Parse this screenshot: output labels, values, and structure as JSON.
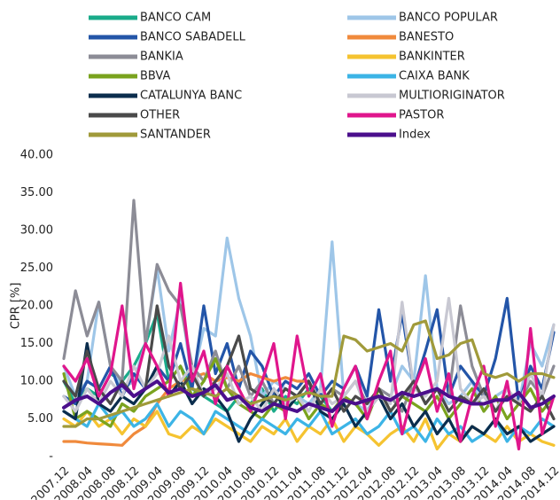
{
  "chart_data": {
    "type": "line",
    "y_label": "CPR [%]",
    "categories": [
      "2007.12",
      null,
      "2008.04",
      null,
      "2008.08",
      null,
      "2008.12",
      null,
      "2009.04",
      null,
      "2009.08",
      null,
      "2009.12",
      null,
      "2010.04",
      null,
      "2010.08",
      null,
      "2010.12",
      null,
      "2011.04",
      null,
      "2011.08",
      null,
      "2011.12",
      null,
      "2012.04",
      null,
      "2012.08",
      null,
      "2012.12",
      null,
      "2013.04",
      null,
      "2013.08",
      null,
      "2013.12",
      null,
      "2014.04",
      null,
      "2014.08",
      null,
      "2014.12"
    ],
    "ylim": [
      0,
      40
    ],
    "yticks": [
      {
        "value": 0,
        "label": "-"
      },
      {
        "value": 5,
        "label": "5.00"
      },
      {
        "value": 10,
        "label": "10.00"
      },
      {
        "value": 15,
        "label": "15.00"
      },
      {
        "value": 20,
        "label": "20.00"
      },
      {
        "value": 25,
        "label": "25.00"
      },
      {
        "value": 30,
        "label": "30.00"
      },
      {
        "value": 35,
        "label": "35.00"
      },
      {
        "value": 40,
        "label": "40.00"
      }
    ],
    "grid": false,
    "legend": "top",
    "series": [
      {
        "name": "BANCO CAM",
        "color": "#1aab8a",
        "values": [
          10,
          7,
          9,
          8,
          11,
          10,
          12,
          15,
          19,
          10,
          12,
          9,
          8,
          7,
          6,
          8,
          7,
          9,
          6,
          8,
          7,
          9,
          8,
          6,
          7,
          null,
          null,
          null,
          null,
          null,
          null,
          null,
          null,
          null,
          null,
          null,
          null,
          null,
          null,
          null,
          null,
          null,
          null
        ]
      },
      {
        "name": "BANCO POPULAR",
        "color": "#9ec6e8",
        "values": [
          12,
          8,
          10,
          20.5,
          12,
          9,
          10,
          15,
          25,
          14,
          21,
          10,
          17,
          16,
          29,
          21,
          16,
          8,
          10,
          9,
          8,
          7,
          9,
          28.5,
          8,
          7,
          6,
          9,
          8,
          12,
          10,
          24,
          9,
          7,
          8,
          10,
          6,
          8,
          9,
          7,
          15,
          12,
          17.5
        ]
      },
      {
        "name": "BANCO SABADELL",
        "color": "#2355a8",
        "values": [
          8,
          7,
          10,
          9,
          12,
          8,
          11,
          9,
          12,
          10,
          15,
          9,
          20,
          11,
          15,
          9,
          14,
          12,
          8,
          10,
          9,
          11,
          8,
          10,
          9,
          12,
          8,
          19.5,
          10,
          19,
          9,
          14,
          19.5,
          8,
          12,
          10,
          8,
          13,
          21,
          7,
          12,
          9,
          16.5
        ]
      },
      {
        "name": "BANESTO",
        "color": "#f08a3c",
        "values": [
          2,
          2,
          1.8,
          1.7,
          1.6,
          1.5,
          3,
          4,
          7,
          9,
          10,
          10.5,
          11,
          10,
          10.5,
          10,
          11,
          10.5,
          10,
          10.5,
          10,
          10,
          null,
          null,
          null,
          null,
          null,
          null,
          null,
          null,
          null,
          null,
          null,
          null,
          null,
          null,
          null,
          null,
          null,
          null,
          null,
          null,
          null
        ]
      },
      {
        "name": "BANKIA",
        "color": "#8c8c96",
        "values": [
          13,
          22,
          16,
          20.5,
          12,
          10,
          34,
          15,
          25.5,
          22,
          20,
          12,
          10,
          14,
          9,
          12,
          8,
          10,
          7,
          9,
          8,
          10,
          7,
          9,
          8,
          10,
          7,
          9,
          8,
          6,
          10,
          7,
          9,
          8,
          20,
          12,
          8,
          6,
          9,
          7,
          10,
          8,
          12
        ]
      },
      {
        "name": "BANKINTER",
        "color": "#f5c330",
        "values": [
          5,
          4,
          6,
          4,
          5,
          3,
          5,
          4,
          6,
          3,
          2.5,
          4,
          3,
          5,
          4,
          3,
          2,
          4,
          3,
          5,
          2,
          4,
          3,
          5,
          2,
          4,
          3,
          1.5,
          3,
          4,
          2,
          5,
          1,
          3,
          2,
          4,
          3,
          2,
          4,
          2,
          3,
          2,
          1.5
        ]
      },
      {
        "name": "BBVA",
        "color": "#7aa31e",
        "values": [
          11,
          5,
          6,
          5,
          4,
          7,
          6,
          8,
          9,
          10,
          12,
          8,
          10,
          13,
          9,
          7,
          6,
          5,
          7,
          6,
          8,
          5,
          7,
          6,
          8,
          7,
          5,
          9,
          6,
          8,
          7,
          6,
          8,
          5,
          7,
          9,
          6,
          8,
          5,
          7,
          9,
          6,
          8
        ]
      },
      {
        "name": "CAIXA BANK",
        "color": "#3cb4e6",
        "values": [
          6,
          5,
          4,
          7,
          5,
          6,
          4,
          5,
          7,
          4,
          6,
          5,
          3,
          6,
          5,
          4,
          3,
          5,
          4,
          3,
          5,
          4,
          6,
          3,
          4,
          5,
          3,
          4,
          6,
          3,
          4,
          2,
          5,
          3,
          4,
          2,
          3,
          5,
          2,
          4,
          3,
          5,
          4
        ]
      },
      {
        "name": "CATALUNYA BANC",
        "color": "#0b2d4d",
        "values": [
          6,
          5,
          15,
          7,
          6,
          8,
          7,
          9,
          12,
          8,
          10,
          7,
          9,
          8,
          6,
          2,
          5,
          7,
          9,
          6,
          8,
          10,
          6,
          5,
          7,
          4,
          6,
          8,
          5,
          7,
          4,
          6,
          3,
          5,
          2,
          4,
          3,
          5,
          3,
          4,
          2,
          3,
          4
        ]
      },
      {
        "name": "MULTIORIGINATOR",
        "color": "#c8c8d2",
        "values": [
          8,
          6,
          9,
          7,
          10,
          8,
          12,
          9,
          11,
          16,
          10,
          12,
          8,
          9,
          11,
          7,
          8,
          6,
          9,
          7,
          8,
          6,
          9,
          7,
          8,
          10,
          6,
          8,
          7,
          20.5,
          9,
          8,
          10,
          21,
          9,
          7,
          8,
          6,
          9,
          7,
          11,
          8,
          17.5
        ]
      },
      {
        "name": "OTHER",
        "color": "#4a4a4a",
        "values": [
          10,
          8,
          14,
          9,
          7,
          10,
          8,
          9,
          20,
          12,
          9,
          11,
          8,
          10,
          12,
          16,
          9,
          8,
          7,
          9,
          8,
          10,
          7,
          9,
          6,
          8,
          7,
          9,
          6,
          8,
          10,
          7,
          9,
          6,
          8,
          7,
          9,
          6,
          8,
          7,
          6,
          8,
          5
        ]
      },
      {
        "name": "PASTOR",
        "color": "#e0168c",
        "values": [
          12,
          10,
          13,
          8,
          11,
          20,
          9,
          15,
          12,
          8,
          23,
          10,
          14,
          7,
          12,
          9,
          6,
          10,
          15,
          5,
          16,
          8,
          11,
          4,
          9,
          12,
          5,
          10,
          14,
          3,
          9,
          13,
          6,
          11,
          2,
          8,
          12,
          4,
          10,
          1,
          17,
          3,
          8
        ]
      },
      {
        "name": "SANTANDER",
        "color": "#a09a3a",
        "values": [
          4,
          4,
          5,
          5,
          5.5,
          6,
          6.5,
          7,
          7.5,
          8,
          8.5,
          9,
          8.5,
          8,
          9,
          8,
          7,
          7.5,
          8,
          7.5,
          8,
          8.5,
          8,
          8,
          16,
          15.5,
          14,
          14.5,
          15,
          14,
          17.5,
          18,
          13,
          13.5,
          15,
          15.5,
          11,
          10.5,
          11,
          10,
          11,
          11,
          10.5
        ]
      },
      {
        "name": "Index",
        "color": "#4b0f8c",
        "values": [
          6.5,
          7.5,
          8.0,
          7.0,
          8.5,
          9.5,
          8.0,
          9.0,
          10.0,
          8.5,
          9.0,
          8.0,
          8.5,
          9.5,
          7.5,
          8.0,
          6.5,
          6.0,
          7.0,
          6.5,
          6.0,
          7.0,
          6.5,
          6.0,
          7.5,
          7.0,
          7.5,
          8.0,
          7.5,
          8.5,
          8.0,
          8.5,
          9.0,
          8.0,
          7.5,
          7.0,
          7.0,
          7.5,
          7.5,
          8.5,
          6.5,
          7.0,
          8.0
        ]
      }
    ]
  }
}
